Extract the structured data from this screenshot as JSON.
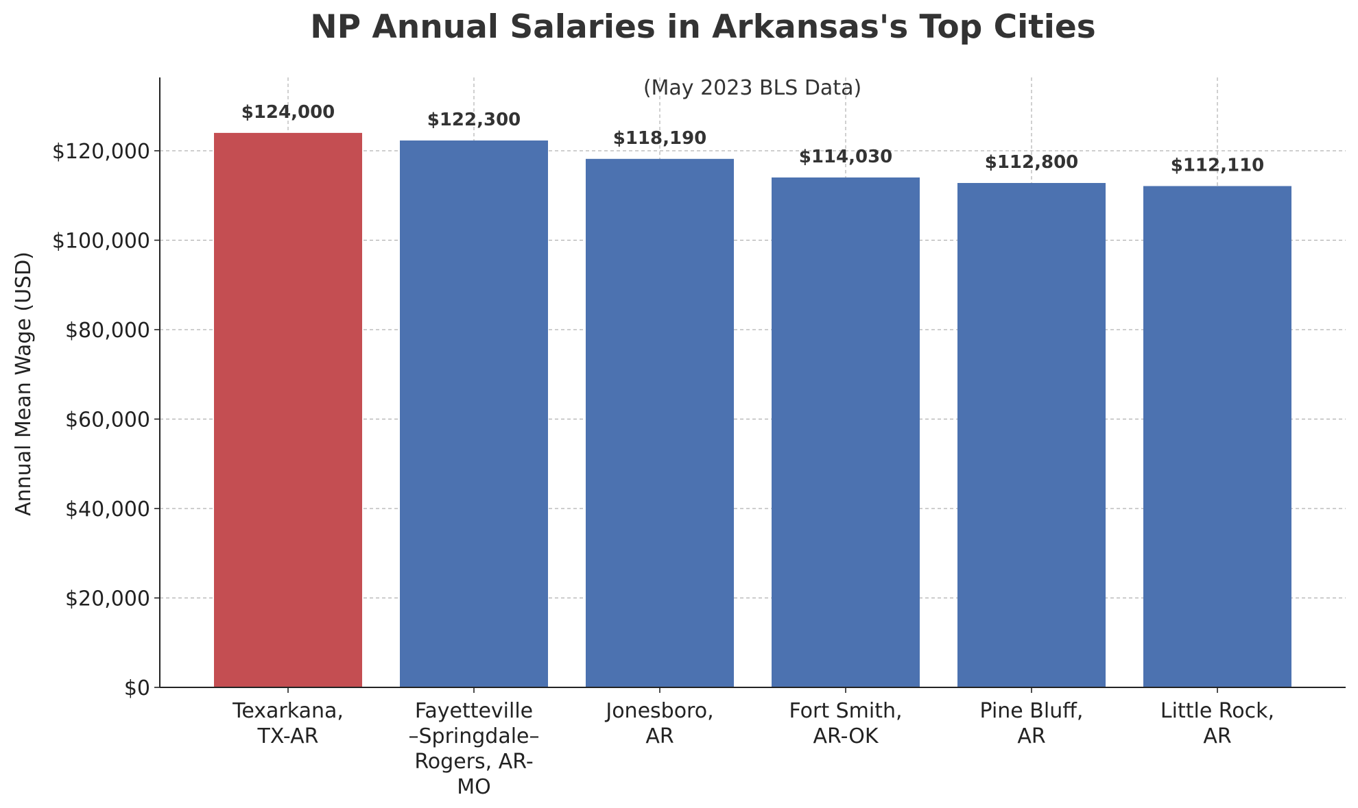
{
  "chart_data": {
    "type": "bar",
    "title": "NP Annual Salaries in Arkansas's Top Cities",
    "subtitle": "(May 2023 BLS Data)",
    "xlabel": "",
    "ylabel": "Annual Mean Wage (USD)",
    "ylim": [
      0,
      136400
    ],
    "yticks": [
      0,
      20000,
      40000,
      60000,
      80000,
      100000,
      120000
    ],
    "ytick_labels": [
      "$0",
      "$20,000",
      "$40,000",
      "$60,000",
      "$80,000",
      "$100,000",
      "$120,000"
    ],
    "grid": true,
    "categories": [
      [
        "Texarkana,",
        "TX-AR"
      ],
      [
        "Fayetteville",
        "–Springdale–",
        "Rogers, AR-",
        "MO"
      ],
      [
        "Jonesboro,",
        "AR"
      ],
      [
        "Fort Smith,",
        "AR-OK"
      ],
      [
        "Pine Bluff,",
        "AR"
      ],
      [
        "Little Rock,",
        "AR"
      ]
    ],
    "values": [
      124000,
      122300,
      118190,
      114030,
      112800,
      112110
    ],
    "value_labels": [
      "$124,000",
      "$122,300",
      "$118,190",
      "$114,030",
      "$112,800",
      "$112,110"
    ],
    "bar_colors": [
      "#c44e52",
      "#4c72b0",
      "#4c72b0",
      "#4c72b0",
      "#4c72b0",
      "#4c72b0"
    ]
  }
}
